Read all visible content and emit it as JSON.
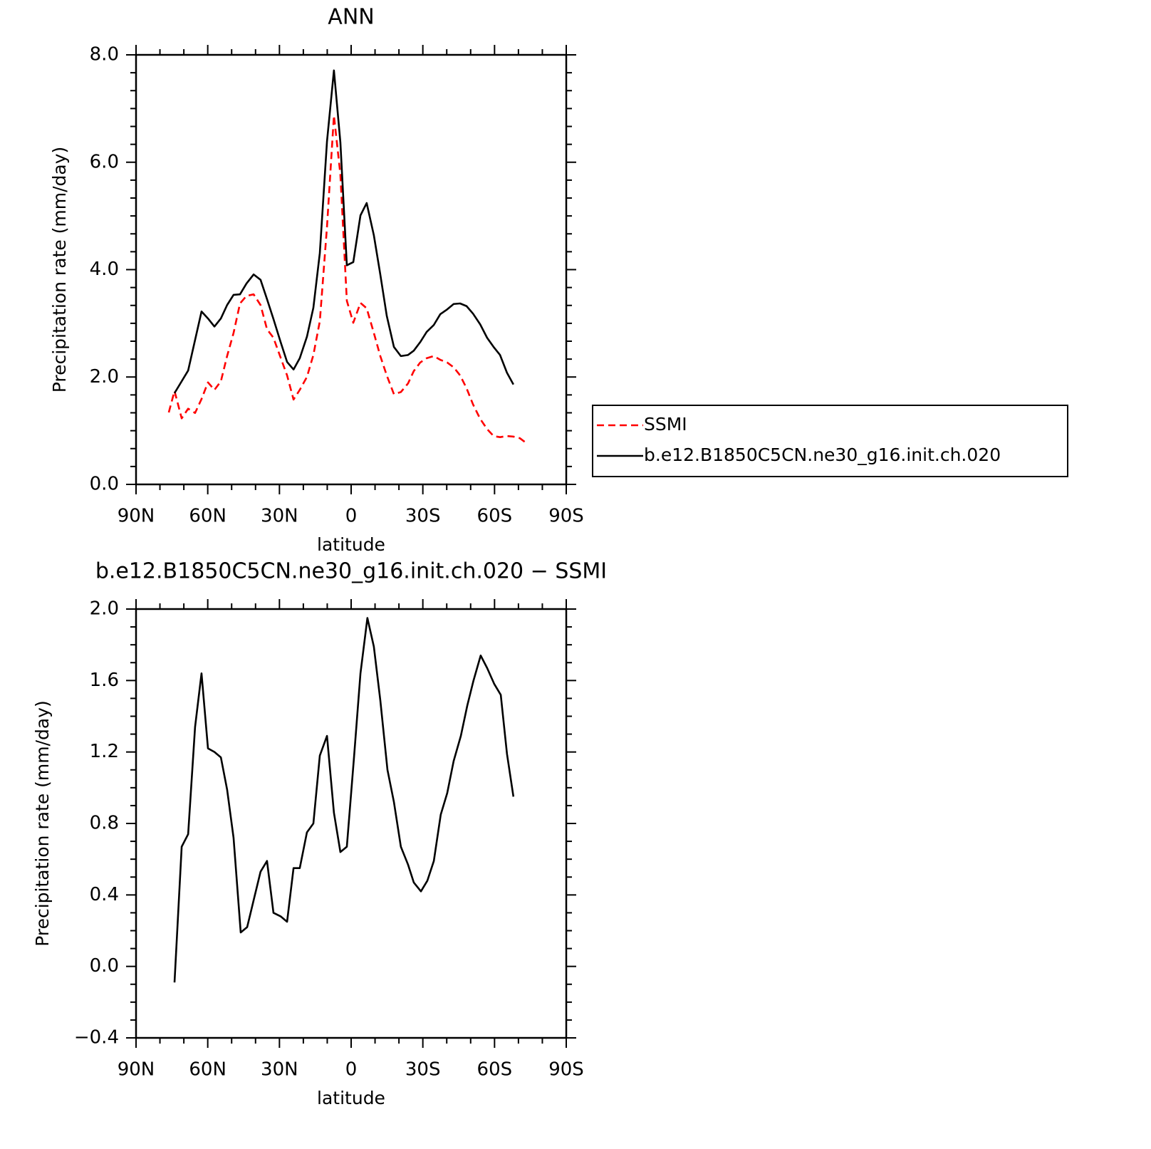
{
  "chart_data": [
    {
      "type": "line",
      "title": "ANN",
      "xlabel": "latitude",
      "ylabel": "Precipitation rate (mm/day)",
      "xlim": [
        90,
        -90
      ],
      "xticks": [
        {
          "value": 90,
          "label": "90N"
        },
        {
          "value": 60,
          "label": "60N"
        },
        {
          "value": 30,
          "label": "30N"
        },
        0,
        {
          "value": -30,
          "label": "30S"
        },
        {
          "value": -60,
          "label": "60S"
        },
        {
          "value": -90,
          "label": "90S"
        }
      ],
      "ylim": [
        0,
        8
      ],
      "yticks": [
        {
          "value": 0,
          "label": "0.0"
        },
        {
          "value": 2,
          "label": "2.0"
        },
        {
          "value": 4,
          "label": "4.0"
        },
        {
          "value": 6,
          "label": "6.0"
        },
        {
          "value": 8,
          "label": "8.0"
        }
      ],
      "legend": "right",
      "series": [
        {
          "name": "SSMI",
          "color": "#ff0000",
          "line_style": "dashed",
          "x": [
            76.3,
            73.9,
            70.9,
            68.2,
            65.3,
            62.6,
            59.9,
            57.2,
            54.5,
            51.9,
            49.2,
            46.5,
            43.8,
            40.8,
            37.9,
            35.2,
            32.5,
            29.5,
            26.8,
            24.1,
            21.5,
            18.5,
            15.8,
            13.1,
            10.1,
            7.2,
            4.5,
            1.8,
            -0.9,
            -3.9,
            -6.5,
            -9.5,
            -12.2,
            -14.9,
            -17.9,
            -20.8,
            -23.8,
            -26.2,
            -28.9,
            -31.6,
            -34.6,
            -37.3,
            -40.2,
            -42.9,
            -45.6,
            -48.3,
            -51.0,
            -54.0,
            -56.9,
            -59.6,
            -62.3,
            -65.2,
            -67.9,
            -70.6,
            -73.6
          ],
          "values": [
            1.34,
            1.74,
            1.23,
            1.41,
            1.33,
            1.59,
            1.9,
            1.76,
            1.92,
            2.39,
            2.82,
            3.37,
            3.51,
            3.54,
            3.34,
            2.89,
            2.73,
            2.36,
            2.03,
            1.58,
            1.76,
            2.0,
            2.41,
            3.04,
            4.8,
            6.87,
            5.77,
            3.42,
            3.01,
            3.38,
            3.28,
            2.82,
            2.39,
            2.03,
            1.68,
            1.72,
            1.88,
            2.11,
            2.27,
            2.35,
            2.39,
            2.32,
            2.27,
            2.18,
            2.03,
            1.79,
            1.49,
            1.22,
            1.03,
            0.9,
            0.88,
            0.9,
            0.89,
            0.86,
            0.76
          ]
        },
        {
          "name": "b.e12.B1850C5CN.ne30_g16.init.ch.020",
          "color": "#000000",
          "line_style": "solid",
          "x": [
            73.9,
            68.2,
            62.6,
            59.9,
            57.2,
            54.5,
            51.9,
            49.2,
            46.5,
            43.8,
            40.8,
            37.9,
            35.2,
            32.5,
            29.5,
            26.8,
            24.1,
            21.5,
            18.5,
            15.8,
            13.1,
            10.1,
            7.2,
            4.5,
            1.8,
            -0.9,
            -3.9,
            -6.5,
            -9.5,
            -12.2,
            -14.9,
            -17.9,
            -20.8,
            -23.8,
            -26.2,
            -28.9,
            -31.6,
            -34.6,
            -37.3,
            -40.2,
            -42.9,
            -45.6,
            -48.3,
            -51.0,
            -54.0,
            -56.9,
            -59.6,
            -62.3,
            -65.2,
            -67.9
          ],
          "values": [
            1.7,
            2.12,
            3.22,
            3.09,
            2.94,
            3.09,
            3.34,
            3.53,
            3.54,
            3.74,
            3.91,
            3.81,
            3.45,
            3.08,
            2.65,
            2.28,
            2.14,
            2.35,
            2.75,
            3.29,
            4.31,
            6.39,
            7.71,
            6.37,
            4.08,
            4.14,
            5.01,
            5.24,
            4.64,
            3.91,
            3.14,
            2.56,
            2.39,
            2.41,
            2.49,
            2.65,
            2.84,
            2.97,
            3.17,
            3.26,
            3.36,
            3.37,
            3.32,
            3.18,
            2.98,
            2.73,
            2.56,
            2.41,
            2.08,
            1.86
          ]
        }
      ]
    },
    {
      "type": "line",
      "title": "b.e12.B1850C5CN.ne30_g16.init.ch.020 − SSMI",
      "xlabel": "latitude",
      "ylabel": "Precipitation rate (mm/day)",
      "xlim": [
        90,
        -90
      ],
      "xticks": [
        {
          "value": 90,
          "label": "90N"
        },
        {
          "value": 60,
          "label": "60N"
        },
        {
          "value": 30,
          "label": "30N"
        },
        0,
        {
          "value": -30,
          "label": "30S"
        },
        {
          "value": -60,
          "label": "60S"
        },
        {
          "value": -90,
          "label": "90S"
        }
      ],
      "ylim": [
        -0.4,
        2.0
      ],
      "yticks": [
        {
          "value": -0.4,
          "label": "−0.4"
        },
        {
          "value": 0,
          "label": "0.0"
        },
        0.4,
        0.8,
        1.2,
        1.6,
        {
          "value": 2,
          "label": "2.0"
        }
      ],
      "color": "#000000",
      "x": [
        73.9,
        70.9,
        68.2,
        65.3,
        62.6,
        59.9,
        57.2,
        54.5,
        51.9,
        49.2,
        46.2,
        43.5,
        40.8,
        37.9,
        35.2,
        32.5,
        29.5,
        26.8,
        24.1,
        21.5,
        18.5,
        15.8,
        13.1,
        10.1,
        7.2,
        4.5,
        1.8,
        -1.2,
        -3.9,
        -6.8,
        -9.5,
        -12.2,
        -15.2,
        -17.9,
        -20.8,
        -23.8,
        -26.2,
        -29.2,
        -31.9,
        -34.6,
        -37.5,
        -40.2,
        -42.9,
        -45.9,
        -48.6,
        -51.2,
        -54.2,
        -56.9,
        -59.9,
        -62.6,
        -65.2,
        -67.9
      ],
      "values": [
        -0.09,
        0.67,
        0.74,
        1.34,
        1.64,
        1.22,
        1.2,
        1.17,
        0.99,
        0.72,
        0.19,
        0.22,
        0.37,
        0.53,
        0.59,
        0.3,
        0.28,
        0.25,
        0.55,
        0.55,
        0.75,
        0.8,
        1.18,
        1.29,
        0.86,
        0.64,
        0.67,
        1.17,
        1.64,
        1.95,
        1.79,
        1.49,
        1.1,
        0.92,
        0.67,
        0.57,
        0.47,
        0.42,
        0.48,
        0.59,
        0.85,
        0.97,
        1.15,
        1.29,
        1.46,
        1.6,
        1.74,
        1.67,
        1.58,
        1.52,
        1.19,
        0.95
      ]
    }
  ]
}
